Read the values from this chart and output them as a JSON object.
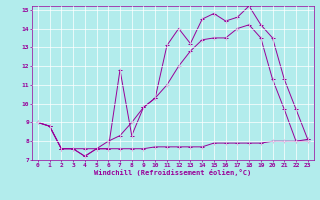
{
  "xlabel": "Windchill (Refroidissement éolien,°C)",
  "bg_color": "#b2ecec",
  "line_color": "#990099",
  "grid_color": "#ffffff",
  "x_min": 0,
  "x_max": 23,
  "y_min": 7,
  "y_max": 15,
  "series1_x": [
    0,
    1,
    2,
    3,
    4,
    5,
    6,
    7,
    8,
    9,
    10,
    11,
    12,
    13,
    14,
    15,
    16,
    17,
    18,
    19,
    20,
    21,
    22,
    23
  ],
  "series1_y": [
    9.0,
    8.8,
    7.6,
    7.6,
    7.2,
    7.6,
    7.6,
    7.6,
    7.6,
    7.6,
    7.7,
    7.7,
    7.7,
    7.7,
    7.7,
    7.9,
    7.9,
    7.9,
    7.9,
    7.9,
    8.0,
    8.0,
    8.0,
    8.0
  ],
  "series2_x": [
    0,
    1,
    2,
    3,
    4,
    5,
    6,
    7,
    8,
    9,
    10,
    11,
    12,
    13,
    14,
    15,
    16,
    17,
    18,
    19,
    20,
    21,
    22,
    23
  ],
  "series2_y": [
    9.0,
    8.8,
    7.6,
    7.6,
    7.6,
    7.6,
    8.0,
    8.3,
    9.0,
    9.8,
    10.3,
    11.0,
    12.0,
    12.8,
    13.4,
    13.5,
    13.5,
    14.0,
    14.2,
    13.5,
    11.3,
    9.7,
    8.0,
    8.1
  ],
  "series3_x": [
    0,
    1,
    2,
    3,
    4,
    5,
    6,
    7,
    8,
    9,
    10,
    11,
    12,
    13,
    14,
    15,
    16,
    17,
    18,
    19,
    20,
    21,
    22,
    23
  ],
  "series3_y": [
    9.0,
    8.8,
    7.6,
    7.6,
    7.2,
    7.6,
    7.6,
    11.8,
    8.3,
    9.8,
    10.3,
    13.1,
    14.0,
    13.2,
    14.5,
    14.8,
    14.4,
    14.6,
    15.2,
    14.2,
    13.5,
    11.3,
    9.7,
    8.1
  ],
  "figwidth": 3.2,
  "figheight": 2.0,
  "dpi": 100
}
